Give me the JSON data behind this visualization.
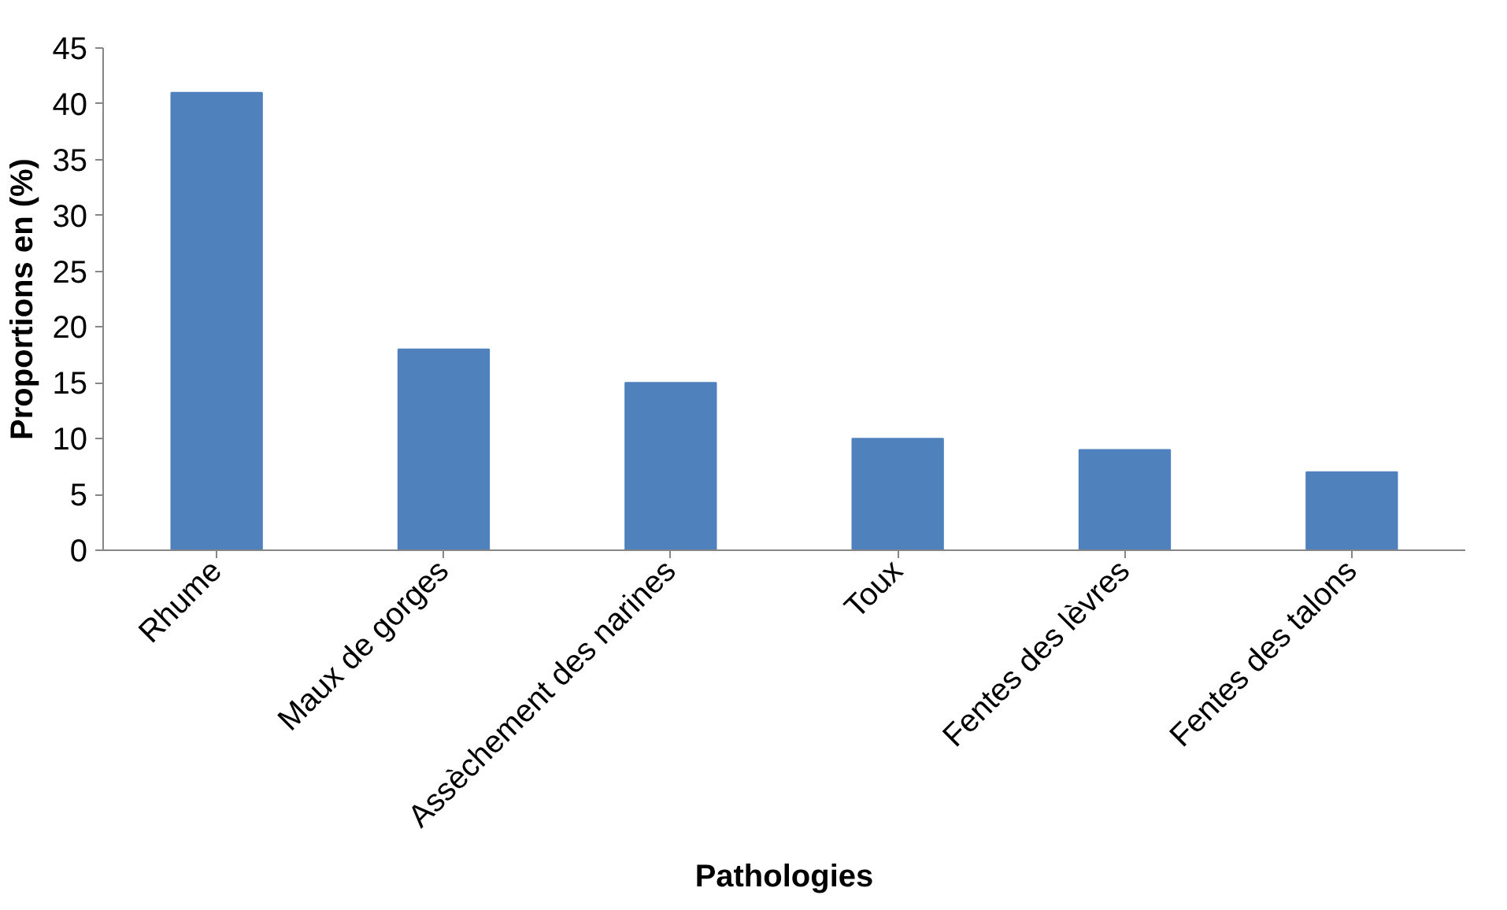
{
  "chart_data": {
    "type": "bar",
    "xlabel": "Pathologies",
    "ylabel": "Proportions en (%)",
    "categories": [
      "Rhume",
      "Maux de gorges",
      "Assèchement des narines",
      "Toux",
      "Fentes des lèvres",
      "Fentes des talons"
    ],
    "values": [
      41,
      18,
      15,
      10,
      9,
      7
    ],
    "color": "#4f81bd",
    "ylim": [
      0,
      45
    ],
    "yticks": [
      0,
      5,
      10,
      15,
      20,
      25,
      30,
      35,
      40,
      45
    ],
    "grid": false
  }
}
